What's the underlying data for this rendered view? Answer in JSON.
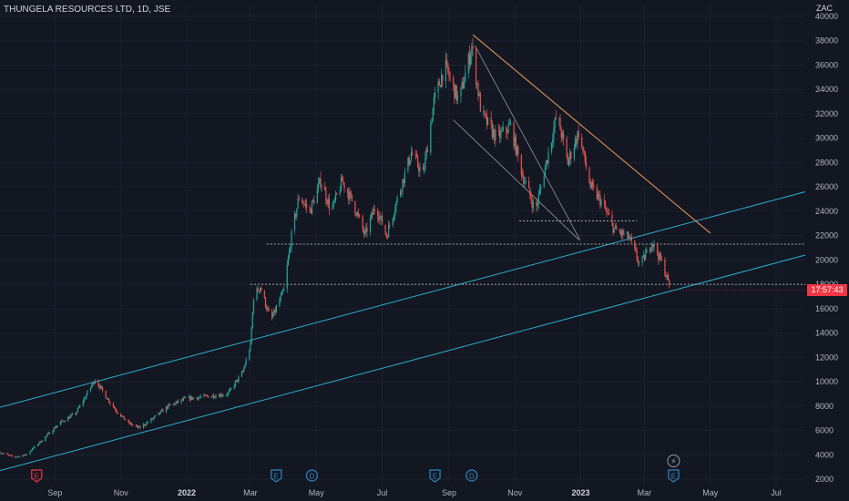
{
  "header": {
    "title": "THUNGELA RESOURCES LTD, 1D, JSE",
    "unit": "ZAC"
  },
  "price_badge": "17:57:43",
  "colors": {
    "background": "#131722",
    "up": "#26a69a",
    "down": "#ef5350",
    "channel": "#2ab0d0",
    "resistance": "#f5a05a",
    "wedge": "#9598a1",
    "badge": "#f23645",
    "event_red": "#f23645",
    "event_blue": "#2e86c1"
  },
  "chart_data": {
    "type": "candlestick",
    "title": "THUNGELA RESOURCES LTD, 1D, JSE",
    "ylabel": "ZAC",
    "ylim": [
      2000,
      40000
    ],
    "xlim": [
      "2021-07-12",
      "2023-07-28"
    ],
    "yticks": [
      "2000",
      "4000",
      "6000",
      "8000",
      "10000",
      "12000",
      "14000",
      "16000",
      "18000",
      "20000",
      "22000",
      "24000",
      "26000",
      "28000",
      "30000",
      "32000",
      "34000",
      "36000",
      "38000",
      "40000"
    ],
    "xticks": [
      {
        "label": "Sep",
        "date": "2021-09-01"
      },
      {
        "label": "Nov",
        "date": "2021-11-01"
      },
      {
        "label": "2022",
        "date": "2022-01-01",
        "bold": true
      },
      {
        "label": "Mar",
        "date": "2022-03-01"
      },
      {
        "label": "May",
        "date": "2022-05-01"
      },
      {
        "label": "Jul",
        "date": "2022-07-01"
      },
      {
        "label": "Sep",
        "date": "2022-09-01"
      },
      {
        "label": "Nov",
        "date": "2022-11-01"
      },
      {
        "label": "2023",
        "date": "2023-01-01",
        "bold": true
      },
      {
        "label": "Mar",
        "date": "2023-03-01"
      },
      {
        "label": "May",
        "date": "2023-05-01"
      },
      {
        "label": "Jul",
        "date": "2023-07-01"
      }
    ],
    "price_path": [
      [
        "2021-07-12",
        4200
      ],
      [
        "2021-07-25",
        3800
      ],
      [
        "2021-08-05",
        4000
      ],
      [
        "2021-08-20",
        5200
      ],
      [
        "2021-09-05",
        6600
      ],
      [
        "2021-09-20",
        7400
      ],
      [
        "2021-09-28",
        8600
      ],
      [
        "2021-10-08",
        10200
      ],
      [
        "2021-10-18",
        8800
      ],
      [
        "2021-10-28",
        7600
      ],
      [
        "2021-11-08",
        6600
      ],
      [
        "2021-11-18",
        6200
      ],
      [
        "2021-12-01",
        7000
      ],
      [
        "2021-12-15",
        8000
      ],
      [
        "2021-12-31",
        8600
      ],
      [
        "2022-01-20",
        8800
      ],
      [
        "2022-02-08",
        9000
      ],
      [
        "2022-02-22",
        10800
      ],
      [
        "2022-03-01",
        13000
      ],
      [
        "2022-03-04",
        17000
      ],
      [
        "2022-03-10",
        17800
      ],
      [
        "2022-03-20",
        15000
      ],
      [
        "2022-04-01",
        17500
      ],
      [
        "2022-04-08",
        22000
      ],
      [
        "2022-04-15",
        25200
      ],
      [
        "2022-04-25",
        24000
      ],
      [
        "2022-05-05",
        26500
      ],
      [
        "2022-05-15",
        24000
      ],
      [
        "2022-05-25",
        26500
      ],
      [
        "2022-06-05",
        24500
      ],
      [
        "2022-06-15",
        22000
      ],
      [
        "2022-06-25",
        24500
      ],
      [
        "2022-07-05",
        22000
      ],
      [
        "2022-07-15",
        25000
      ],
      [
        "2022-07-28",
        28800
      ],
      [
        "2022-08-08",
        27000
      ],
      [
        "2022-08-18",
        33000
      ],
      [
        "2022-08-28",
        36000
      ],
      [
        "2022-09-10",
        33000
      ],
      [
        "2022-09-22",
        37500
      ],
      [
        "2022-10-01",
        32000
      ],
      [
        "2022-10-15",
        30000
      ],
      [
        "2022-10-28",
        31000
      ],
      [
        "2022-11-08",
        27000
      ],
      [
        "2022-11-20",
        24000
      ],
      [
        "2022-11-30",
        28000
      ],
      [
        "2022-12-10",
        32000
      ],
      [
        "2022-12-20",
        28000
      ],
      [
        "2022-12-30",
        30500
      ],
      [
        "2023-01-10",
        26000
      ],
      [
        "2023-01-20",
        24800
      ],
      [
        "2023-02-01",
        22500
      ],
      [
        "2023-02-15",
        21800
      ],
      [
        "2023-02-25",
        19500
      ],
      [
        "2023-03-08",
        21500
      ],
      [
        "2023-03-18",
        19600
      ],
      [
        "2023-03-24",
        17950
      ]
    ],
    "drawings": {
      "upper_channel": [
        [
          "2021-07-12",
          7900
        ],
        [
          "2023-07-28",
          25600
        ]
      ],
      "lower_channel": [
        [
          "2021-07-12",
          2700
        ],
        [
          "2023-07-28",
          20400
        ]
      ],
      "resistance_line": [
        [
          "2022-09-23",
          38500
        ],
        [
          "2023-05-01",
          22200
        ]
      ],
      "wedge_upper": [
        [
          "2022-09-25",
          37600
        ],
        [
          "2022-12-31",
          21700
        ]
      ],
      "wedge_lower": [
        [
          "2022-09-05",
          31500
        ],
        [
          "2022-12-31",
          21600
        ]
      ],
      "h_line_1": {
        "price": 21300,
        "from": "2022-03-16"
      },
      "h_line_2": {
        "price": 18000,
        "from": "2022-03-01"
      },
      "h_line_3": {
        "price": 23200,
        "from": "2022-11-05",
        "to": "2023-02-22"
      }
    },
    "events": [
      {
        "letter": "E",
        "date": "2021-08-15",
        "style": "red"
      },
      {
        "letter": "E",
        "date": "2022-03-25",
        "style": "blue"
      },
      {
        "letter": "D",
        "date": "2022-04-27",
        "style": "blue"
      },
      {
        "letter": "E",
        "date": "2022-08-19",
        "style": "blue"
      },
      {
        "letter": "D",
        "date": "2022-09-22",
        "style": "blue"
      },
      {
        "letter": "E",
        "date": "2023-03-28",
        "style": "blue"
      },
      {
        "letter": "⚡",
        "date": "2023-03-28",
        "style": "circle"
      }
    ]
  }
}
